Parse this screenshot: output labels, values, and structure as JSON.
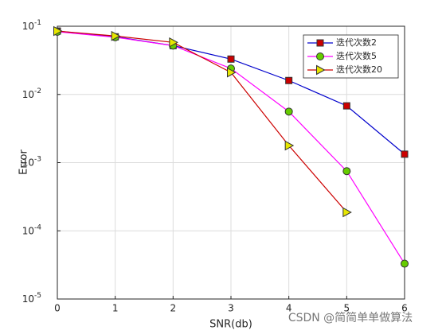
{
  "chart_data": {
    "type": "line",
    "xlabel": "SNR(db)",
    "ylabel": "Error",
    "x": [
      0,
      1,
      2,
      3,
      4,
      5,
      6
    ],
    "series": [
      {
        "name": "迭代次数2",
        "color": "#0000cc",
        "marker": "square",
        "marker_color": "#cc0000",
        "values": [
          0.085,
          0.07,
          0.052,
          0.033,
          0.016,
          0.0068,
          0.00133
        ]
      },
      {
        "name": "迭代次数5",
        "color": "#ff00ff",
        "marker": "circle",
        "marker_color": "#66cc00",
        "values": [
          0.083,
          0.069,
          0.052,
          0.024,
          0.0056,
          0.00075,
          3.3e-05
        ]
      },
      {
        "name": "迭代次数20",
        "color": "#cc0000",
        "marker": "triangle",
        "marker_color": "#e6e600",
        "values": [
          0.085,
          0.072,
          0.058,
          0.021,
          0.00178,
          0.000187,
          null
        ]
      }
    ],
    "xlim": [
      0,
      6
    ],
    "xticks": [
      0,
      1,
      2,
      3,
      4,
      5,
      6
    ],
    "ylim": [
      1e-05,
      0.1
    ],
    "yticks": [
      {
        "value": 1e-05,
        "label": "10",
        "exponent": "-5"
      },
      {
        "value": 0.0001,
        "label": "10",
        "exponent": "-4"
      },
      {
        "value": 0.001,
        "label": "10",
        "exponent": "-3"
      },
      {
        "value": 0.01,
        "label": "10",
        "exponent": "-2"
      },
      {
        "value": 0.1,
        "label": "10",
        "exponent": "-1"
      }
    ],
    "log_y": true,
    "grid": true,
    "legend": "top-right",
    "watermark": "CSDN @简简单单做算法"
  }
}
